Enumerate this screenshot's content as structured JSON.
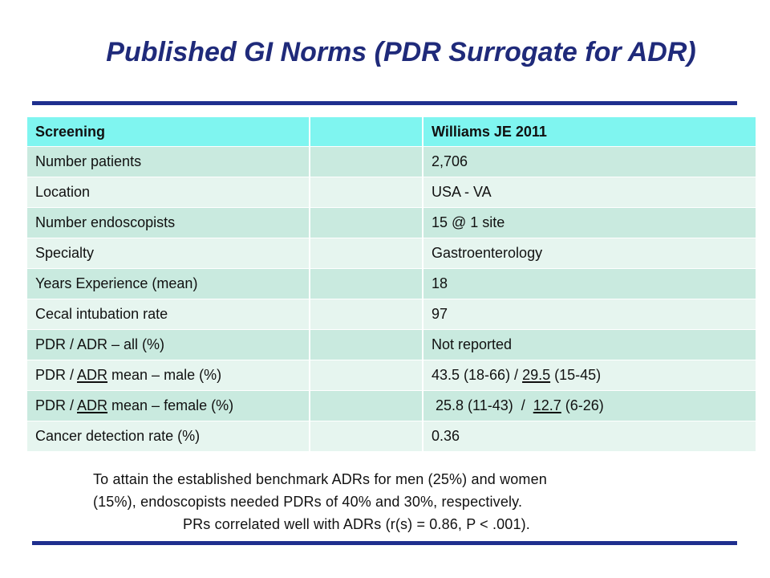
{
  "title": "Published GI Norms (PDR Surrogate for ADR)",
  "table": {
    "headers": [
      "Screening",
      "",
      "Williams JE 2011"
    ],
    "rows": [
      {
        "label": "Number patients",
        "value": "2,706"
      },
      {
        "label": "Location",
        "value": "USA - VA"
      },
      {
        "label": "Number endoscopists",
        "value": "15 @ 1 site"
      },
      {
        "label": "Specialty",
        "value": "Gastroenterology"
      },
      {
        "label": "Years Experience (mean)",
        "value": "18"
      },
      {
        "label": "Cecal intubation rate",
        "value": "97"
      },
      {
        "label": "PDR / ADR – all (%)",
        "value": "Not reported"
      },
      {
        "label_pre": "PDR / ",
        "label_ul": "ADR",
        "label_post": " mean – male (%)",
        "value_pre": "43.5 (18-66) / ",
        "value_ul": "29.5",
        "value_post": " (15-45)"
      },
      {
        "label_pre": "PDR / ",
        "label_ul": "ADR",
        "label_post": " mean – female (%)",
        "value_pre": " 25.8 (11-43)  /  ",
        "value_ul": "12.7",
        "value_post": " (6-26)"
      },
      {
        "label": "Cancer detection rate (%)",
        "value": "0.36"
      }
    ]
  },
  "footnote": {
    "line1": "To attain the established benchmark ADRs for men (25%) and women",
    "line2": "(15%), endoscopists needed PDRs of 40% and 30%, respectively.",
    "line3": "PRs correlated well with ADRs (r(s) = 0.86, P < .001)."
  }
}
